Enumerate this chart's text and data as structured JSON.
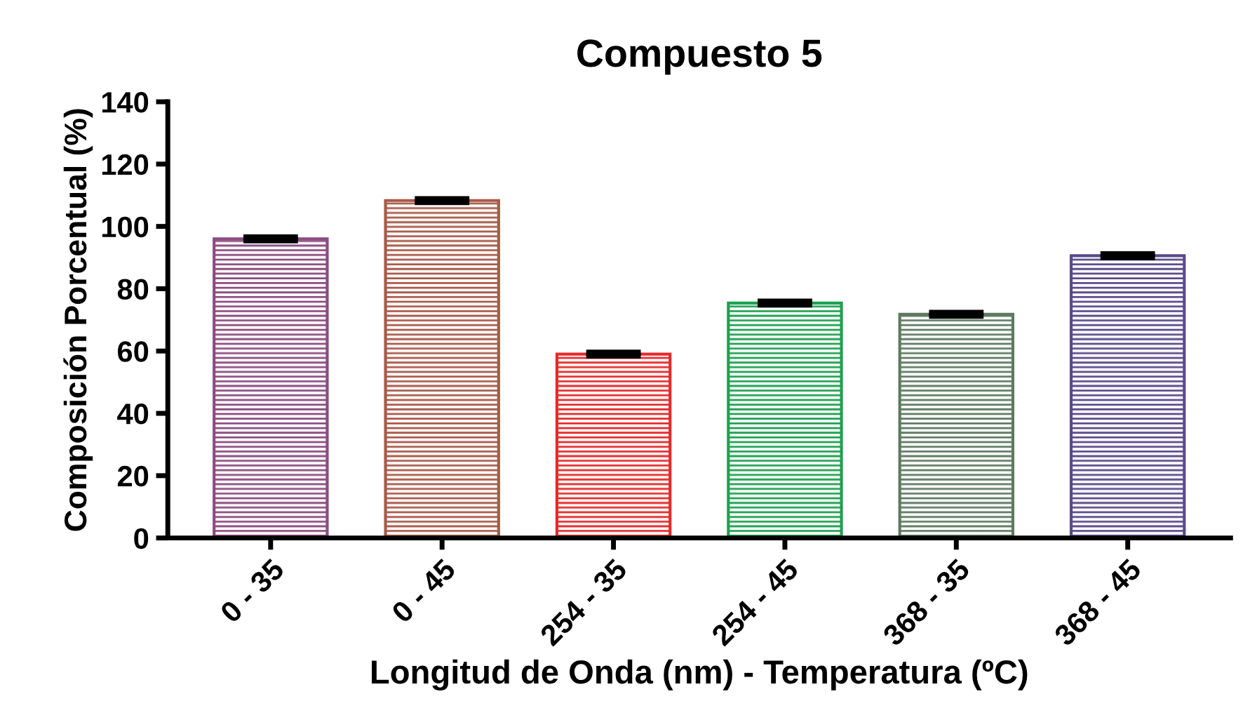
{
  "chart_data": {
    "type": "bar",
    "title": "Compuesto 5",
    "xlabel": "Longitud de Onda (nm) - Temperatura (ºC)",
    "ylabel": "Composición Porcentual (%)",
    "categories": [
      "0 - 35",
      "0 - 45",
      "254 - 35",
      "254 - 45",
      "368 - 35",
      "368 - 45"
    ],
    "values": [
      96,
      108.3,
      59,
      75.4,
      71.8,
      90.6
    ],
    "errors": [
      0.5,
      0.5,
      0.5,
      0.5,
      0.5,
      0.5
    ],
    "colors": [
      "#8b4c80",
      "#a85a48",
      "#e52a2a",
      "#1fa050",
      "#5e7a60",
      "#5a4a8a"
    ],
    "ylim": [
      0,
      140
    ],
    "yticks": [
      0,
      20,
      40,
      60,
      80,
      100,
      120,
      140
    ],
    "grid": false
  }
}
